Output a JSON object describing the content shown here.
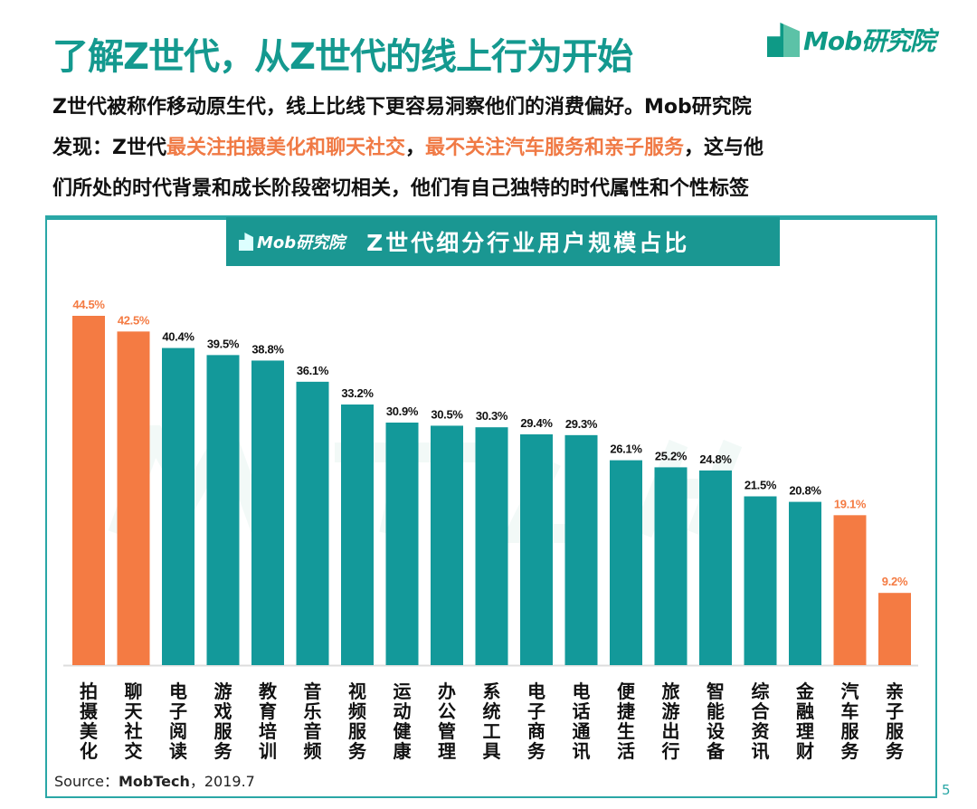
{
  "title": "了解Z世代，从Z世代的线上行为开始",
  "logo": {
    "text": "Mob研究院"
  },
  "intro": {
    "line1": "Z世代被称作移动原生代，线上比线下更容易洞察他们的消费偏好。Mob研究院",
    "line2_pre": "发现：Z世代",
    "line2_hl1": "最关注拍摄美化和聊天社交",
    "line2_mid": "，",
    "line2_hl2": "最不关注汽车服务和亲子服务",
    "line2_post": "，这与他",
    "line3": "们所处的时代背景和成长阶段密切相关，他们有自己独特的时代属性和个性标签"
  },
  "banner": {
    "logo": "Mob研究院",
    "title": "Z世代细分行业用户规模占比"
  },
  "watermark": "MobTech",
  "source": {
    "prefix": "Source：",
    "name": "MobTech",
    "suffix": "，2019.7"
  },
  "page_number": "5",
  "colors": {
    "teal": "#13999a",
    "orange": "#f47b43",
    "title": "#14998f"
  },
  "chart_data": {
    "type": "bar",
    "title": "Z世代细分行业用户规模占比",
    "categories": [
      "拍摄美化",
      "聊天社交",
      "电子阅读",
      "游戏服务",
      "教育培训",
      "音乐音频",
      "视频服务",
      "运动健康",
      "办公管理",
      "系统工具",
      "电子商务",
      "电话通讯",
      "便捷生活",
      "旅游出行",
      "智能设备",
      "综合资讯",
      "金融理财",
      "汽车服务",
      "亲子服务"
    ],
    "values": [
      44.5,
      42.5,
      40.4,
      39.5,
      38.8,
      36.1,
      33.2,
      30.9,
      30.5,
      30.3,
      29.4,
      29.3,
      26.1,
      25.2,
      24.8,
      21.5,
      20.8,
      19.1,
      9.2
    ],
    "labels": [
      "44.5%",
      "42.5%",
      "40.4%",
      "39.5%",
      "38.8%",
      "36.1%",
      "33.2%",
      "30.9%",
      "30.5%",
      "30.3%",
      "29.4%",
      "29.3%",
      "26.1%",
      "25.2%",
      "24.8%",
      "21.5%",
      "20.8%",
      "19.1%",
      "9.2%"
    ],
    "highlight": [
      true,
      true,
      false,
      false,
      false,
      false,
      false,
      false,
      false,
      false,
      false,
      false,
      false,
      false,
      false,
      false,
      false,
      true,
      true
    ],
    "unit": "%",
    "ylim": [
      0,
      45
    ],
    "grid": false,
    "legend": "none"
  }
}
